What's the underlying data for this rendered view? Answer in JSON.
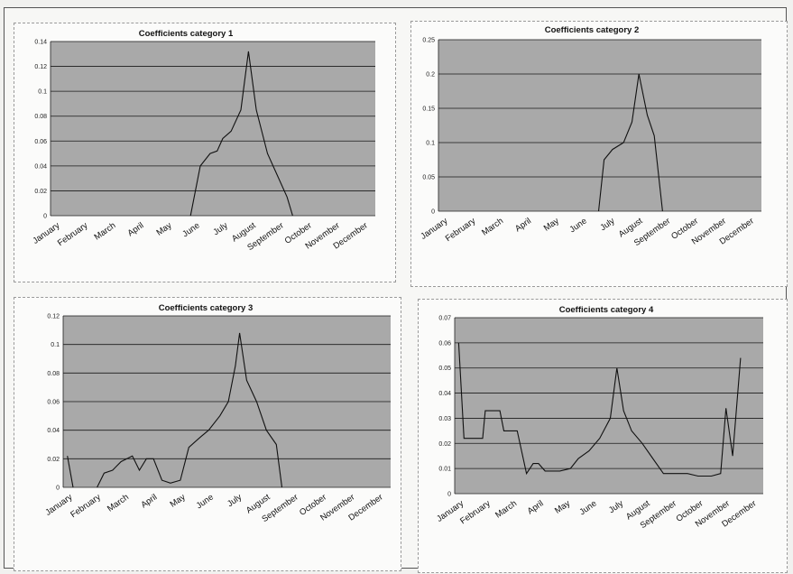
{
  "chart_data": [
    {
      "type": "line",
      "title": "Coefficients category 1",
      "categories": [
        "January",
        "February",
        "March",
        "April",
        "May",
        "June",
        "July",
        "August",
        "September",
        "October",
        "November",
        "December"
      ],
      "ylim": [
        0,
        0.14
      ],
      "yticks": [
        "0",
        "0.02",
        "0.04",
        "0.06",
        "0.08",
        "0.1",
        "0.12",
        "0.14"
      ],
      "grid": true,
      "series": [
        {
          "points": [
            [
              4.85,
              0
            ],
            [
              5.2,
              0.04
            ],
            [
              5.55,
              0.05
            ],
            [
              5.8,
              0.052
            ],
            [
              6.0,
              0.062
            ],
            [
              6.3,
              0.068
            ],
            [
              6.65,
              0.085
            ],
            [
              6.92,
              0.132
            ],
            [
              7.2,
              0.085
            ],
            [
              7.6,
              0.05
            ],
            [
              8.0,
              0.03
            ],
            [
              8.3,
              0.015
            ],
            [
              8.5,
              0
            ]
          ]
        }
      ]
    },
    {
      "type": "line",
      "title": "Coefficients category 2",
      "categories": [
        "January",
        "February",
        "March",
        "April",
        "May",
        "June",
        "July",
        "August",
        "September",
        "October",
        "November",
        "December"
      ],
      "ylim": [
        0,
        0.25
      ],
      "yticks": [
        "0",
        "0.05",
        "0.1",
        "0.15",
        "0.2",
        "0.25"
      ],
      "grid": true,
      "series": [
        {
          "points": [
            [
              5.6,
              0
            ],
            [
              5.8,
              0.075
            ],
            [
              6.1,
              0.09
            ],
            [
              6.5,
              0.1
            ],
            [
              6.8,
              0.13
            ],
            [
              7.05,
              0.2
            ],
            [
              7.35,
              0.14
            ],
            [
              7.6,
              0.11
            ],
            [
              7.9,
              0
            ]
          ]
        }
      ]
    },
    {
      "type": "line",
      "title": "Coefficients category 3",
      "categories": [
        "January",
        "February",
        "March",
        "April",
        "May",
        "June",
        "July",
        "August",
        "September",
        "October",
        "November",
        "December"
      ],
      "ylim": [
        0,
        0.12
      ],
      "yticks": [
        "0",
        "0.02",
        "0.04",
        "0.06",
        "0.08",
        "0.1",
        "0.12"
      ],
      "grid": true,
      "series": [
        {
          "points": [
            [
              0,
              0.022
            ],
            [
              0.2,
              0
            ]
          ]
        },
        {
          "points": [
            [
              1.05,
              0
            ],
            [
              1.3,
              0.01
            ],
            [
              1.6,
              0.012
            ],
            [
              1.9,
              0.018
            ],
            [
              2.3,
              0.022
            ],
            [
              2.55,
              0.012
            ],
            [
              2.8,
              0.02
            ],
            [
              3.05,
              0.02
            ],
            [
              3.35,
              0.005
            ],
            [
              3.65,
              0.003
            ],
            [
              4.0,
              0.005
            ],
            [
              4.3,
              0.028
            ],
            [
              4.7,
              0.035
            ],
            [
              5.0,
              0.04
            ],
            [
              5.4,
              0.05
            ],
            [
              5.7,
              0.06
            ],
            [
              5.95,
              0.085
            ],
            [
              6.1,
              0.108
            ],
            [
              6.35,
              0.075
            ],
            [
              6.7,
              0.06
            ],
            [
              7.05,
              0.04
            ],
            [
              7.4,
              0.03
            ],
            [
              7.6,
              0
            ]
          ]
        }
      ]
    },
    {
      "type": "line",
      "title": "Coefficients category 4",
      "categories": [
        "January",
        "February",
        "March",
        "April",
        "May",
        "June",
        "July",
        "August",
        "September",
        "October",
        "November",
        "December"
      ],
      "ylim": [
        0,
        0.07
      ],
      "yticks": [
        "0",
        "0.01",
        "0.02",
        "0.03",
        "0.04",
        "0.05",
        "0.06",
        "0.07"
      ],
      "grid": true,
      "series": [
        {
          "points": [
            [
              0,
              0.06
            ],
            [
              0.2,
              0.022
            ],
            [
              0.5,
              0.022
            ],
            [
              0.9,
              0.022
            ],
            [
              1.0,
              0.033
            ],
            [
              1.3,
              0.033
            ],
            [
              1.55,
              0.033
            ],
            [
              1.7,
              0.025
            ],
            [
              2.2,
              0.025
            ],
            [
              2.55,
              0.008
            ],
            [
              2.8,
              0.012
            ],
            [
              3.0,
              0.012
            ],
            [
              3.25,
              0.009
            ],
            [
              3.8,
              0.009
            ],
            [
              4.2,
              0.01
            ],
            [
              4.5,
              0.014
            ],
            [
              4.9,
              0.017
            ],
            [
              5.3,
              0.022
            ],
            [
              5.7,
              0.03
            ],
            [
              5.95,
              0.05
            ],
            [
              6.2,
              0.033
            ],
            [
              6.5,
              0.025
            ],
            [
              6.9,
              0.02
            ],
            [
              7.3,
              0.014
            ],
            [
              7.7,
              0.008
            ],
            [
              8.2,
              0.008
            ],
            [
              8.6,
              0.008
            ],
            [
              9.0,
              0.007
            ],
            [
              9.5,
              0.007
            ],
            [
              9.85,
              0.008
            ],
            [
              10.05,
              0.034
            ],
            [
              10.3,
              0.015
            ],
            [
              10.6,
              0.054
            ]
          ]
        }
      ]
    }
  ],
  "colors": {
    "plot_bg": "#a9a9a9",
    "grid": "#1a1a1a",
    "line": "#111111"
  }
}
